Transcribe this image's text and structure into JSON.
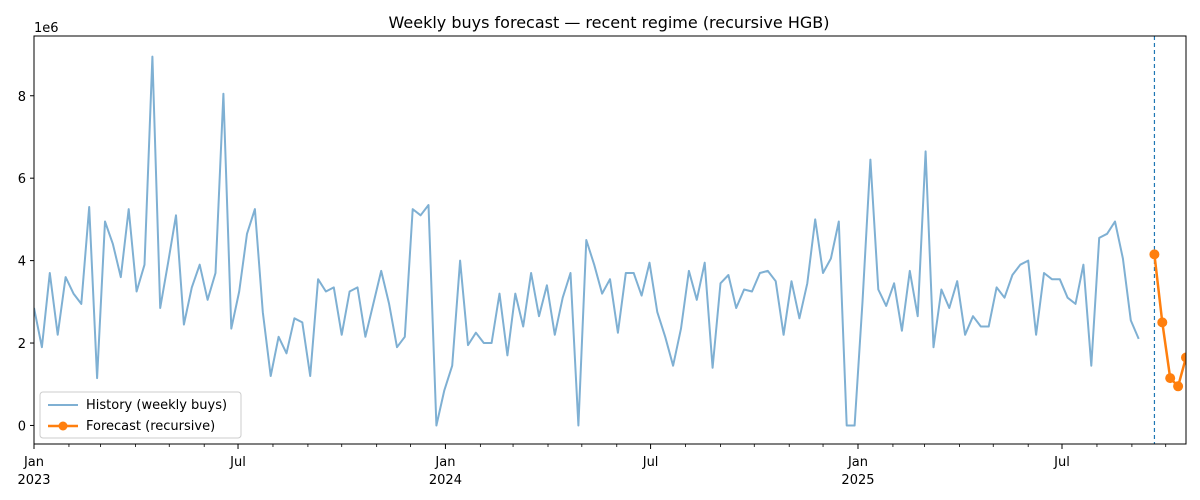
{
  "chart_data": {
    "type": "line",
    "title": "Weekly buys forecast — recent regime (recursive HGB)",
    "xlabel": "",
    "ylabel": "",
    "y_offset_label": "1e6",
    "y_scale": 1000000,
    "xlim": [
      "2023-01-01",
      "2025-10-19"
    ],
    "ylim": [
      -0.45,
      9.45
    ],
    "grid": false,
    "legend_placement": "lower-left",
    "x_major_ticks": [
      {
        "date": "2023-01-01",
        "label": "Jan",
        "year": "2023"
      },
      {
        "date": "2023-07-01",
        "label": "Jul",
        "year": ""
      },
      {
        "date": "2024-01-01",
        "label": "Jan",
        "year": "2024"
      },
      {
        "date": "2024-07-01",
        "label": "Jul",
        "year": ""
      },
      {
        "date": "2025-01-01",
        "label": "Jan",
        "year": "2025"
      },
      {
        "date": "2025-07-01",
        "label": "Jul",
        "year": ""
      }
    ],
    "x_minor_ticks": [
      "2023-02-01",
      "2023-03-01",
      "2023-04-01",
      "2023-05-01",
      "2023-06-01",
      "2023-08-01",
      "2023-09-01",
      "2023-10-01",
      "2023-11-01",
      "2023-12-01",
      "2024-02-01",
      "2024-03-01",
      "2024-04-01",
      "2024-05-01",
      "2024-06-01",
      "2024-08-01",
      "2024-09-01",
      "2024-10-01",
      "2024-11-01",
      "2024-12-01",
      "2025-02-01",
      "2025-03-01",
      "2025-04-01",
      "2025-05-01",
      "2025-06-01",
      "2025-08-01",
      "2025-09-01",
      "2025-10-01"
    ],
    "y_ticks": [
      0,
      2,
      4,
      6,
      8
    ],
    "forecast_start_date": "2025-09-21",
    "history_start_date": "2023-01-01",
    "history_step_days": 7,
    "series": [
      {
        "name": "History (weekly buys)",
        "color": "#7fb0d3",
        "values": [
          2.85,
          1.9,
          3.7,
          2.2,
          3.6,
          3.2,
          2.95,
          5.3,
          1.15,
          4.95,
          4.4,
          3.6,
          5.25,
          3.25,
          3.9,
          8.95,
          2.85,
          3.95,
          5.1,
          2.45,
          3.35,
          3.9,
          3.05,
          3.7,
          8.05,
          2.35,
          3.25,
          4.65,
          5.25,
          2.75,
          1.2,
          2.15,
          1.75,
          2.6,
          2.5,
          1.2,
          3.55,
          3.25,
          3.35,
          2.2,
          3.25,
          3.35,
          2.15,
          2.95,
          3.75,
          2.95,
          1.9,
          2.15,
          5.25,
          5.1,
          5.35,
          0.0,
          0.85,
          1.45,
          4.0,
          1.95,
          2.25,
          2.0,
          2.0,
          3.2,
          1.7,
          3.2,
          2.4,
          3.7,
          2.65,
          3.4,
          2.2,
          3.1,
          3.7,
          0.0,
          4.5,
          3.9,
          3.2,
          3.55,
          2.25,
          3.7,
          3.7,
          3.15,
          3.95,
          2.75,
          2.15,
          1.45,
          2.35,
          3.75,
          3.05,
          3.95,
          1.4,
          3.45,
          3.65,
          2.85,
          3.3,
          3.25,
          3.7,
          3.75,
          3.5,
          2.2,
          3.5,
          2.6,
          3.45,
          5.0,
          3.7,
          4.05,
          4.95,
          0.0,
          0.0,
          3.0,
          6.45,
          3.3,
          2.9,
          3.45,
          2.3,
          3.75,
          2.65,
          6.65,
          1.9,
          3.3,
          2.85,
          3.5,
          2.2,
          2.65,
          2.4,
          2.4,
          3.35,
          3.1,
          3.65,
          3.9,
          4.0,
          2.2,
          3.7,
          3.55,
          3.55,
          3.1,
          2.95,
          3.9,
          1.45,
          4.55,
          4.65,
          4.95,
          4.05,
          2.55,
          2.1
        ]
      },
      {
        "name": "Forecast (recursive)",
        "color": "#ff7f0e",
        "x": [
          "2025-09-21",
          "2025-09-28",
          "2025-10-05",
          "2025-10-12",
          "2025-10-19"
        ],
        "values": [
          4.15,
          2.5,
          1.15,
          0.95,
          1.65
        ]
      }
    ]
  }
}
